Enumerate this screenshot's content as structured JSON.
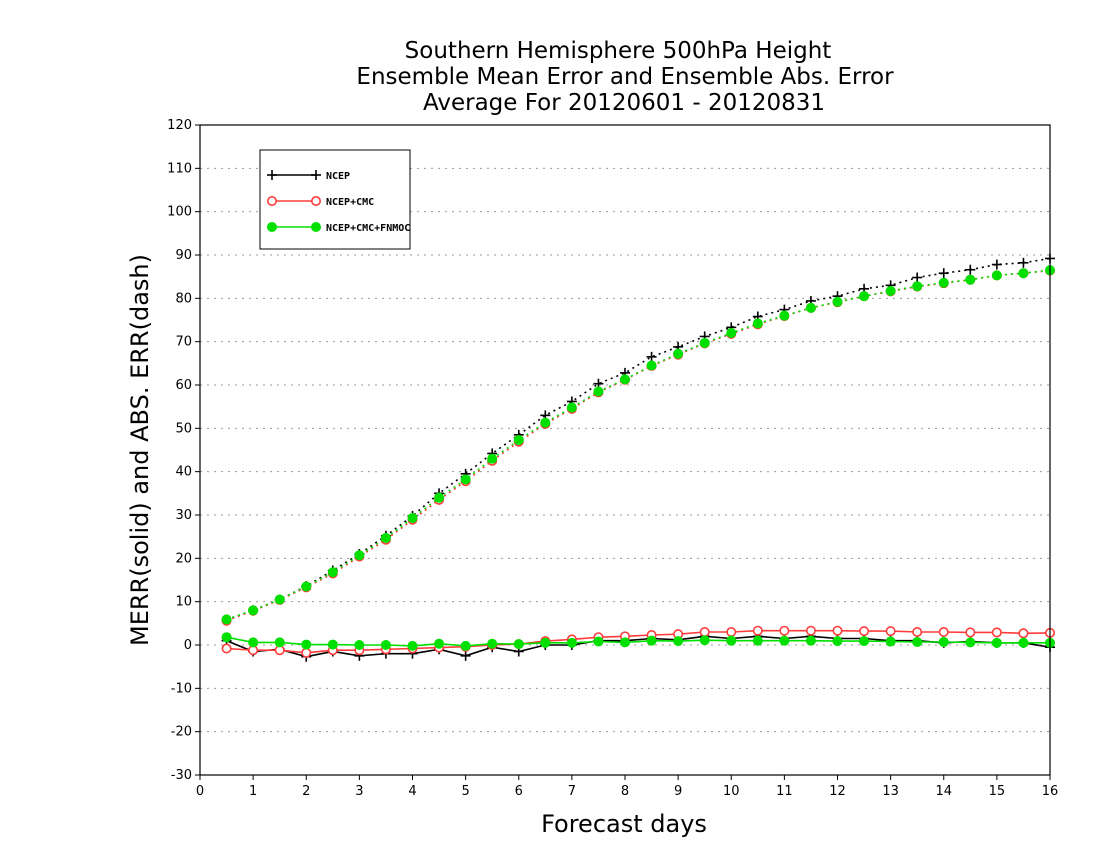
{
  "chart_data": {
    "type": "line",
    "title": [
      "Southern Hemisphere 500hPa Height",
      "Ensemble Mean Error and Ensemble Abs. Error",
      "Average For 20120601 - 20120831"
    ],
    "xlabel": "Forecast days",
    "ylabel": "MERR(solid) and ABS. ERR(dash)",
    "xlim": [
      0,
      16
    ],
    "ylim": [
      -30,
      120
    ],
    "xticks": [
      "0",
      "1",
      "2",
      "3",
      "4",
      "5",
      "6",
      "7",
      "8",
      "9",
      "10",
      "11",
      "12",
      "13",
      "14",
      "15",
      "16"
    ],
    "yticks": [
      "-30",
      "-20",
      "-10",
      "0",
      "10",
      "20",
      "30",
      "40",
      "50",
      "60",
      "70",
      "80",
      "90",
      "100",
      "110",
      "120"
    ],
    "grid": "horizontal dotted",
    "legend_position": "top-left",
    "x": [
      0.5,
      1,
      1.5,
      2,
      2.5,
      3,
      3.5,
      4,
      4.5,
      5,
      5.5,
      6,
      6.5,
      7,
      7.5,
      8,
      8.5,
      9,
      9.5,
      10,
      10.5,
      11,
      11.5,
      12,
      12.5,
      13,
      13.5,
      14,
      14.5,
      15,
      15.5,
      16
    ],
    "series": [
      {
        "name": "NCEP",
        "color": "#000000",
        "marker": "plus",
        "abs_err": [
          5.8,
          8.0,
          10.5,
          13.6,
          17.2,
          21.0,
          25.2,
          29.8,
          35.0,
          39.5,
          44.2,
          48.5,
          53.0,
          56.2,
          60.3,
          62.8,
          66.5,
          68.8,
          71.2,
          73.3,
          75.8,
          77.4,
          79.4,
          80.5,
          82.2,
          83.0,
          84.8,
          85.8,
          86.6,
          87.8,
          88.2,
          89.2
        ],
        "mean_err": [
          1.0,
          -1.5,
          -1.0,
          -2.7,
          -1.5,
          -2.5,
          -2.0,
          -2.0,
          -1.0,
          -2.5,
          -0.5,
          -1.5,
          0.0,
          0.0,
          1.0,
          1.0,
          1.5,
          1.2,
          2.0,
          1.5,
          2.0,
          1.5,
          2.0,
          1.5,
          1.5,
          1.0,
          1.0,
          0.5,
          0.8,
          0.5,
          0.5,
          -0.5
        ]
      },
      {
        "name": "NCEP+CMC",
        "color": "#ff3b3b",
        "marker": "open-circle",
        "abs_err": [
          5.6,
          7.9,
          10.4,
          13.3,
          16.5,
          20.4,
          24.3,
          28.9,
          33.5,
          37.8,
          42.5,
          46.9,
          51.0,
          54.5,
          58.3,
          61.2,
          64.4,
          67.0,
          69.6,
          71.8,
          74.0,
          75.9,
          77.8,
          79.1,
          80.5,
          81.6,
          82.7,
          83.5,
          84.3,
          85.3,
          85.8,
          86.4
        ],
        "mean_err": [
          -0.8,
          -1.2,
          -1.2,
          -1.8,
          -1.2,
          -1.2,
          -1.0,
          -0.8,
          -0.6,
          -0.4,
          0.0,
          0.2,
          0.9,
          1.3,
          1.8,
          2.0,
          2.3,
          2.5,
          3.0,
          3.0,
          3.3,
          3.3,
          3.3,
          3.3,
          3.2,
          3.2,
          3.0,
          3.0,
          2.9,
          2.9,
          2.7,
          2.8
        ]
      },
      {
        "name": "NCEP+CMC+FNMOC",
        "color": "#00e000",
        "marker": "filled-circle",
        "abs_err": [
          5.9,
          8.0,
          10.5,
          13.5,
          16.8,
          20.7,
          24.7,
          29.3,
          34.0,
          38.2,
          43.0,
          47.3,
          51.3,
          54.8,
          58.5,
          61.3,
          64.5,
          67.2,
          69.7,
          72.0,
          74.2,
          76.0,
          77.8,
          79.2,
          80.5,
          81.7,
          82.8,
          83.6,
          84.3,
          85.3,
          85.8,
          86.5
        ],
        "mean_err": [
          1.8,
          0.6,
          0.6,
          0.1,
          0.1,
          0.0,
          0.0,
          -0.2,
          0.3,
          -0.2,
          0.3,
          0.2,
          0.5,
          0.5,
          0.8,
          0.6,
          1.0,
          0.9,
          1.1,
          1.0,
          1.0,
          1.0,
          1.0,
          0.9,
          0.9,
          0.8,
          0.7,
          0.7,
          0.6,
          0.5,
          0.5,
          0.5
        ]
      }
    ]
  }
}
